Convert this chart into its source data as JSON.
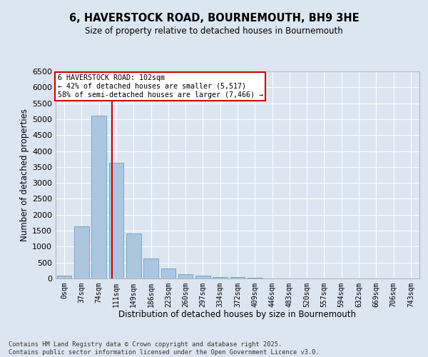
{
  "title_line1": "6, HAVERSTOCK ROAD, BOURNEMOUTH, BH9 3HE",
  "title_line2": "Size of property relative to detached houses in Bournemouth",
  "xlabel": "Distribution of detached houses by size in Bournemouth",
  "ylabel": "Number of detached properties",
  "bar_labels": [
    "0sqm",
    "37sqm",
    "74sqm",
    "111sqm",
    "149sqm",
    "186sqm",
    "223sqm",
    "260sqm",
    "297sqm",
    "334sqm",
    "372sqm",
    "409sqm",
    "446sqm",
    "483sqm",
    "520sqm",
    "557sqm",
    "594sqm",
    "632sqm",
    "669sqm",
    "706sqm",
    "743sqm"
  ],
  "bar_values": [
    80,
    1640,
    5100,
    3620,
    1420,
    620,
    310,
    140,
    90,
    55,
    40,
    15,
    0,
    0,
    0,
    0,
    0,
    0,
    0,
    0,
    0
  ],
  "bar_color": "#adc6e0",
  "bar_edgecolor": "#6a9fc0",
  "vline_x": 2.75,
  "vline_color": "#cc0000",
  "annotation_text": "6 HAVERSTOCK ROAD: 102sqm\n← 42% of detached houses are smaller (5,517)\n58% of semi-detached houses are larger (7,466) →",
  "annotation_box_color": "#cc0000",
  "ylim": [
    0,
    6500
  ],
  "yticks": [
    0,
    500,
    1000,
    1500,
    2000,
    2500,
    3000,
    3500,
    4000,
    4500,
    5000,
    5500,
    6000,
    6500
  ],
  "background_color": "#dce6f0",
  "grid_color": "#ffffff",
  "footer_line1": "Contains HM Land Registry data © Crown copyright and database right 2025.",
  "footer_line2": "Contains public sector information licensed under the Open Government Licence v3.0."
}
